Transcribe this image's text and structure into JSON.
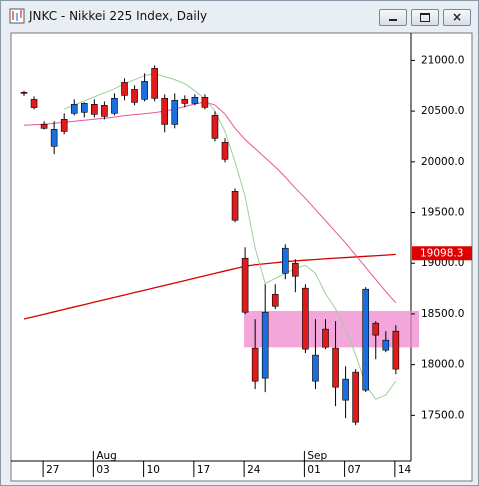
{
  "window_title": "JNKC - Nikkei 225 Index, Daily",
  "chart_data": {
    "type": "candlestick",
    "categories": [
      null,
      null,
      "27",
      null,
      null,
      null,
      null,
      "03",
      null,
      null,
      null,
      null,
      "10",
      null,
      null,
      null,
      null,
      "17",
      null,
      null,
      null,
      null,
      "24",
      null,
      null,
      null,
      null,
      null,
      "01",
      null,
      null,
      null,
      "07",
      null,
      null,
      null,
      null,
      "14"
    ],
    "months": [
      null,
      null,
      null,
      null,
      null,
      null,
      null,
      "Aug",
      null,
      null,
      null,
      null,
      null,
      null,
      null,
      null,
      null,
      null,
      null,
      null,
      null,
      null,
      null,
      null,
      null,
      null,
      null,
      null,
      "Sep",
      null,
      null,
      null,
      null,
      null,
      null,
      null,
      null,
      null
    ],
    "up_color": "#1a6fe0",
    "down_color": "#e01b1b",
    "open": [
      20685,
      20615,
      20370,
      20153,
      20419,
      20478,
      20488,
      20567,
      20557,
      20478,
      20783,
      20714,
      20616,
      20921,
      20626,
      20369,
      20616,
      20576,
      20636,
      20458,
      20192,
      19709,
      19049,
      18163,
      17867,
      18694,
      18901,
      19000,
      18754,
      17837,
      18350,
      18163,
      17650,
      17926,
      17749,
      18409,
      18143,
      18330
    ],
    "high": [
      20700,
      20645,
      20400,
      20400,
      20478,
      20616,
      20586,
      20616,
      20596,
      20675,
      20823,
      20754,
      20872,
      20951,
      20665,
      20675,
      20655,
      20665,
      20665,
      20498,
      20232,
      19738,
      19157,
      18448,
      18793,
      18793,
      19187,
      19039,
      18793,
      18448,
      18448,
      18429,
      17984,
      17956,
      18764,
      18429,
      18330,
      18389
    ],
    "low": [
      20650,
      20517,
      20320,
      20075,
      20271,
      20458,
      20438,
      20438,
      20419,
      20458,
      20606,
      20557,
      20596,
      20596,
      20291,
      20330,
      20537,
      20557,
      20517,
      20202,
      19995,
      19404,
      18497,
      17759,
      17729,
      18547,
      18842,
      18714,
      18114,
      17759,
      18153,
      17591,
      17473,
      17404,
      17729,
      18054,
      18123,
      17906
    ],
    "close": [
      20675,
      20535,
      20330,
      20320,
      20300,
      20567,
      20576,
      20468,
      20448,
      20626,
      20655,
      20586,
      20793,
      20626,
      20369,
      20606,
      20576,
      20636,
      20537,
      20232,
      20025,
      19424,
      18517,
      17837,
      18517,
      18576,
      19148,
      18872,
      18153,
      18094,
      18172,
      17778,
      17857,
      17433,
      18744,
      18291,
      18241,
      17956
    ],
    "series": [
      {
        "color": "#d40000",
        "values": [
          18450,
          18474,
          18497,
          18521,
          18545,
          18569,
          18592,
          18616,
          18640,
          18663,
          18687,
          18711,
          18734,
          18758,
          18782,
          18805,
          18829,
          18853,
          18876,
          18900,
          18924,
          18947,
          18970,
          18985,
          18995,
          19005,
          19015,
          19023,
          19030,
          19037,
          19044,
          19050,
          19056,
          19062,
          19068,
          19074,
          19080,
          19087
        ]
      },
      {
        "color": "#e8559a",
        "values": [
          20360,
          20365,
          20370,
          20380,
          20390,
          20400,
          20410,
          20420,
          20430,
          20440,
          20455,
          20465,
          20475,
          20485,
          20500,
          20520,
          20545,
          20570,
          20590,
          20560,
          20470,
          20330,
          20220,
          20130,
          20040,
          19950,
          19850,
          19740,
          19640,
          19530,
          19420,
          19310,
          19200,
          19080,
          18960,
          18840,
          18720,
          18610
        ]
      },
      {
        "color": "#9ccf9c",
        "values": [
          null,
          null,
          null,
          null,
          20520,
          20560,
          20600,
          20640,
          20680,
          20720,
          20770,
          20810,
          20850,
          20870,
          20840,
          20810,
          20770,
          20700,
          20620,
          20500,
          20300,
          20000,
          19660,
          19150,
          18800,
          18850,
          18900,
          18950,
          18980,
          18900,
          18700,
          18550,
          18350,
          18100,
          17800,
          17660,
          17700,
          17840
        ]
      }
    ],
    "zone": [
      18170,
      18530
    ],
    "zone_color": "#ee88cc",
    "price_label": 19098.3,
    "price_label_color": "#e00000",
    "ylim": [
      17050,
      21270
    ],
    "yticks": [
      {
        "value": 21000,
        "label": "21000.0"
      },
      {
        "value": 20500,
        "label": "20500.0"
      },
      {
        "value": 20000,
        "label": "20000.0"
      },
      {
        "value": 19500,
        "label": "19500.0"
      },
      {
        "value": 19000,
        "label": "19000.0"
      },
      {
        "value": 18500,
        "label": "18500.0"
      },
      {
        "value": 18000,
        "label": "18000.0"
      },
      {
        "value": 17500,
        "label": "17500.0"
      }
    ]
  }
}
